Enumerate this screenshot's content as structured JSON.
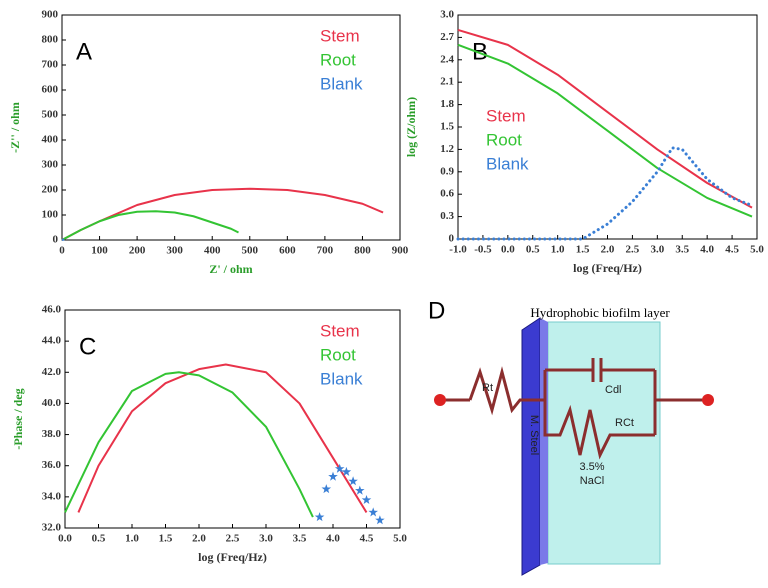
{
  "chart_data": [
    {
      "type": "line",
      "label": "A",
      "xlabel": "Z' / ohm",
      "ylabel": "-Z'' / ohm",
      "legend": "upper right",
      "xlim": [
        0,
        900
      ],
      "xticks": [
        0,
        100,
        200,
        300,
        400,
        500,
        600,
        700,
        800,
        900
      ],
      "ylim": [
        0,
        900
      ],
      "yticks": [
        0,
        100,
        200,
        300,
        400,
        500,
        600,
        700,
        800,
        900
      ],
      "grid": false,
      "series": [
        {
          "name": "Stem",
          "color": "#e8334a",
          "style": "line",
          "x": [
            0,
            50,
            100,
            200,
            300,
            400,
            500,
            600,
            700,
            800,
            855
          ],
          "values": [
            0,
            40,
            75,
            140,
            180,
            200,
            205,
            200,
            180,
            145,
            110
          ]
        },
        {
          "name": "Root",
          "color": "#33c433",
          "style": "line",
          "x": [
            0,
            50,
            100,
            150,
            200,
            250,
            300,
            350,
            400,
            450,
            470
          ],
          "values": [
            0,
            40,
            75,
            100,
            113,
            115,
            110,
            95,
            70,
            45,
            30
          ]
        },
        {
          "name": "Blank",
          "color": "#3a7fd5",
          "style": "line",
          "x": [
            0,
            3,
            6
          ],
          "values": [
            0,
            1,
            2
          ]
        }
      ]
    },
    {
      "type": "line",
      "label": "B",
      "xlabel": "log (Freq/Hz)",
      "ylabel": "log (Z/ohm)",
      "legend": "center left",
      "xlim": [
        -1.0,
        5.0
      ],
      "xticks": [
        {
          "value": -1.0,
          "label": "-1.0"
        },
        {
          "value": -0.5,
          "label": "-0.5"
        },
        {
          "value": 0,
          "label": "0.0"
        },
        {
          "value": 0.5,
          "label": "0.5"
        },
        {
          "value": 1,
          "label": "1.0"
        },
        {
          "value": 1.5,
          "label": "1.5"
        },
        {
          "value": 2,
          "label": "2.0"
        },
        {
          "value": 2.5,
          "label": "2.5"
        },
        {
          "value": 3,
          "label": "3.0"
        },
        {
          "value": 3.5,
          "label": "3.5"
        },
        {
          "value": 4,
          "label": "4.0"
        },
        {
          "value": 4.5,
          "label": "4.5"
        },
        {
          "value": 5,
          "label": "5.0"
        }
      ],
      "ylim": [
        0,
        3.0
      ],
      "yticks": [
        0,
        0.3,
        0.6,
        0.9,
        1.2,
        1.5,
        1.8,
        2.1,
        2.4,
        2.7,
        {
          "value": 3,
          "label": "3.0"
        }
      ],
      "grid": false,
      "series": [
        {
          "name": "Stem",
          "color": "#e8334a",
          "style": "line",
          "x": [
            -1,
            0,
            1,
            2,
            3,
            4,
            4.9
          ],
          "values": [
            2.8,
            2.6,
            2.2,
            1.7,
            1.2,
            0.75,
            0.42
          ]
        },
        {
          "name": "Root",
          "color": "#33c433",
          "style": "line",
          "x": [
            -1,
            0,
            1,
            2,
            3,
            4,
            4.9
          ],
          "values": [
            2.6,
            2.35,
            1.95,
            1.45,
            0.95,
            0.55,
            0.3
          ]
        },
        {
          "name": "Blank",
          "color": "#3a7fd5",
          "style": "dotted",
          "x": [
            -1,
            0,
            1,
            1.5,
            2,
            2.5,
            3,
            3.3,
            3.5,
            4,
            4.5,
            4.9
          ],
          "values": [
            0,
            0,
            0,
            0,
            0.2,
            0.5,
            0.9,
            1.22,
            1.2,
            0.8,
            0.55,
            0.45
          ]
        }
      ]
    },
    {
      "type": "line",
      "label": "C",
      "xlabel": "log (Freq/Hz)",
      "ylabel": "-Phase / deg",
      "legend": "upper right",
      "xlim": [
        0,
        5.0
      ],
      "xticks": [
        {
          "value": 0,
          "label": "0.0"
        },
        0.5,
        {
          "value": 1,
          "label": "1.0"
        },
        1.5,
        {
          "value": 2,
          "label": "2.0"
        },
        2.5,
        {
          "value": 3,
          "label": "3.0"
        },
        3.5,
        {
          "value": 4,
          "label": "4.0"
        },
        4.5,
        {
          "value": 5,
          "label": "5.0"
        }
      ],
      "ylim": [
        32,
        46
      ],
      "yticks": [
        {
          "value": 32,
          "label": "32.0"
        },
        {
          "value": 34,
          "label": "34.0"
        },
        {
          "value": 36,
          "label": "36.0"
        },
        {
          "value": 38,
          "label": "38.0"
        },
        {
          "value": 40,
          "label": "40.0"
        },
        {
          "value": 42,
          "label": "42.0"
        },
        {
          "value": 44,
          "label": "44.0"
        },
        {
          "value": 46,
          "label": "46.0"
        }
      ],
      "grid": false,
      "series": [
        {
          "name": "Stem",
          "color": "#e8334a",
          "style": "line",
          "x": [
            0.2,
            0.5,
            1,
            1.5,
            2,
            2.4,
            3,
            3.5,
            4,
            4.5
          ],
          "values": [
            33,
            36,
            39.5,
            41.3,
            42.2,
            42.5,
            42,
            40,
            36.5,
            33
          ]
        },
        {
          "name": "Root",
          "color": "#33c433",
          "style": "line",
          "x": [
            0,
            0.5,
            1,
            1.5,
            1.7,
            2,
            2.5,
            3,
            3.5,
            3.7
          ],
          "values": [
            33,
            37.5,
            40.8,
            41.9,
            42,
            41.8,
            40.7,
            38.5,
            34.5,
            32.7
          ]
        },
        {
          "name": "Blank",
          "color": "#3a7fd5",
          "style": "stars",
          "x": [
            3.8,
            3.9,
            4.0,
            4.1,
            4.2,
            4.3,
            4.4,
            4.5,
            4.6,
            4.7
          ],
          "values": [
            32.7,
            34.5,
            35.3,
            35.8,
            35.6,
            35,
            34.4,
            33.8,
            33,
            32.5
          ]
        }
      ]
    }
  ],
  "diagram": {
    "label": "D",
    "title": "Hydrophobic  biofilm layer",
    "rt": "Rt",
    "cdl": "Cdl",
    "rct": "RCt",
    "steel": "M. Steel",
    "solution": [
      "3.5%",
      "NaCl"
    ]
  }
}
